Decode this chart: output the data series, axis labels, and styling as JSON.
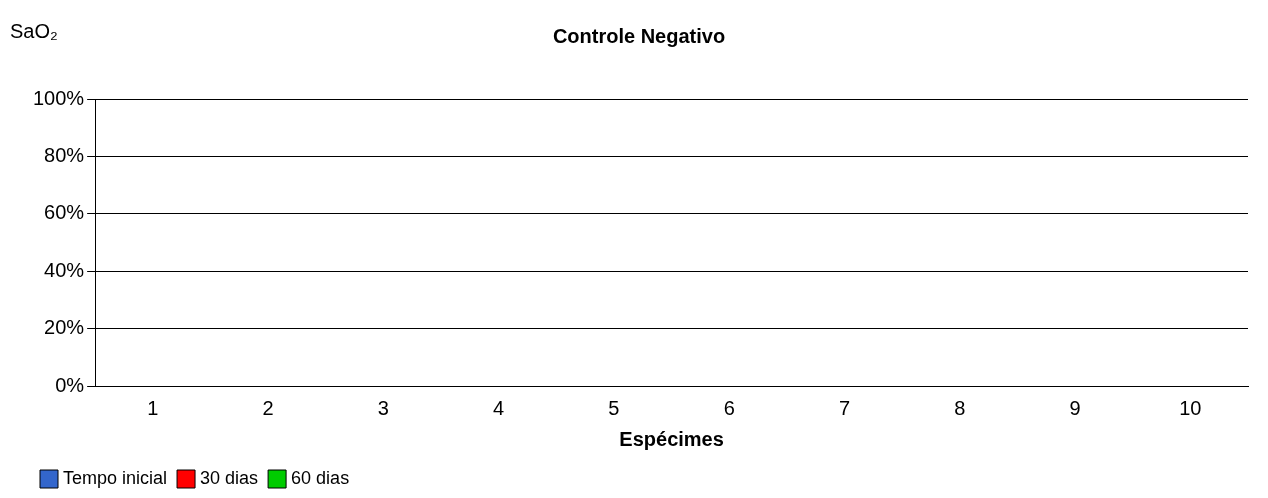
{
  "chart_data": {
    "type": "bar",
    "title": "Controle Negativo",
    "ylabel": "SaO₂",
    "xlabel": "Espécimes",
    "categories": [
      "1",
      "2",
      "3",
      "4",
      "5",
      "6",
      "7",
      "8",
      "9",
      "10"
    ],
    "series": [
      {
        "name": "Tempo inicial",
        "color": "#3366cc",
        "values": [
          0,
          0,
          0,
          0,
          0,
          0,
          0,
          0,
          0,
          0
        ]
      },
      {
        "name": "30 dias",
        "color": "#ff0000",
        "values": [
          null,
          null,
          null,
          null,
          null,
          null,
          null,
          null,
          null,
          null
        ]
      },
      {
        "name": "60 dias",
        "color": "#00cc00",
        "values": [
          null,
          null,
          null,
          null,
          null,
          null,
          null,
          null,
          null,
          null
        ]
      }
    ],
    "ylim": [
      0,
      100
    ],
    "yticks": [
      {
        "value": 0,
        "label": "0%"
      },
      {
        "value": 20,
        "label": "20%"
      },
      {
        "value": 40,
        "label": "40%"
      },
      {
        "value": 60,
        "label": "60%"
      },
      {
        "value": 80,
        "label": "80%"
      },
      {
        "value": 100,
        "label": "100%"
      }
    ],
    "grid": "y",
    "legend": "bottom left"
  }
}
